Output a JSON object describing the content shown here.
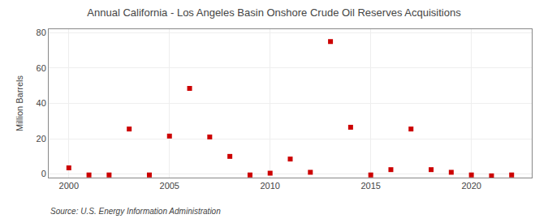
{
  "chart_data": {
    "type": "scatter",
    "title": "Annual California - Los Angeles Basin Onshore Crude Oil Reserves Acquisitions",
    "y_label": "Million Barrels",
    "annotations": [
      "Source: U.S. Energy Information Administration"
    ],
    "x": [
      2000,
      2001,
      2002,
      2003,
      2004,
      2005,
      2006,
      2007,
      2008,
      2009,
      2010,
      2011,
      2012,
      2013,
      2014,
      2015,
      2016,
      2017,
      2018,
      2019,
      2020,
      2021,
      2022
    ],
    "values": [
      3.5,
      -0.5,
      -0.5,
      25.5,
      -0.5,
      21.5,
      48.5,
      21.0,
      10.0,
      -0.5,
      0.5,
      8.5,
      1.0,
      75.0,
      26.5,
      -0.5,
      2.5,
      25.5,
      2.5,
      1.0,
      -0.5,
      -1.0,
      -0.5
    ],
    "color": "#cc0000",
    "marker": "square",
    "xlim": [
      1999,
      2023
    ],
    "xticks": [
      2000,
      2005,
      2010,
      2015,
      2020
    ],
    "ylim": [
      -2,
      82
    ],
    "yticks": [
      0,
      20,
      40,
      60,
      80
    ],
    "grid": true
  }
}
